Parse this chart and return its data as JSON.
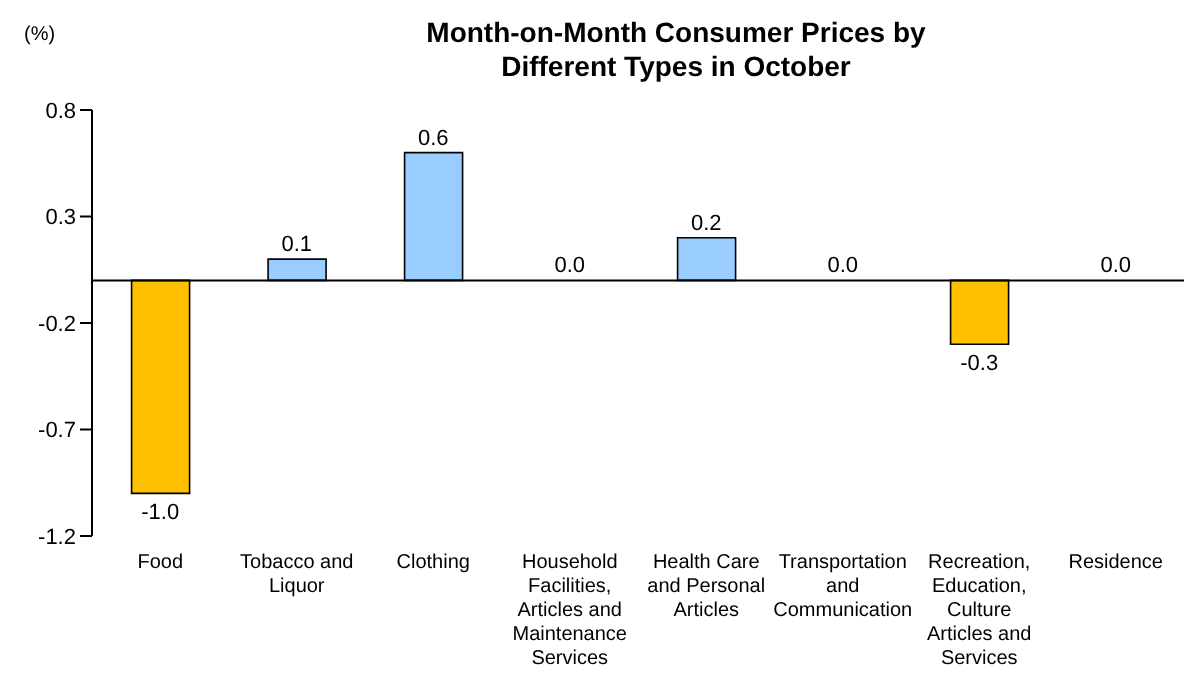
{
  "chart_data": {
    "type": "bar",
    "title": "Month-on-Month Consumer Prices by Different Types in October",
    "ylabel": "(%)",
    "categories": [
      "Food",
      "Tobacco and Liquor",
      "Clothing",
      "Household Facilities, Articles and Maintenance Services",
      "Health Care and Personal Articles",
      "Transportation and Communication",
      "Recreation, Education, Culture Articles and Services",
      "Residence"
    ],
    "values": [
      -1.0,
      0.1,
      0.6,
      0.0,
      0.2,
      0.0,
      -0.3,
      0.0
    ],
    "value_labels": [
      "-1.0",
      "0.1",
      "0.6",
      "0.0",
      "0.2",
      "0.0",
      "-0.3",
      "0.0"
    ],
    "colors": [
      "#ffc000",
      "#99ccff",
      "#99ccff",
      "#99ccff",
      "#99ccff",
      "#99ccff",
      "#ffc000",
      "#99ccff"
    ],
    "ylim": [
      -1.2,
      0.8
    ],
    "yticks": [
      0.8,
      0.3,
      -0.2,
      -0.7,
      -1.2
    ],
    "grid": false
  }
}
